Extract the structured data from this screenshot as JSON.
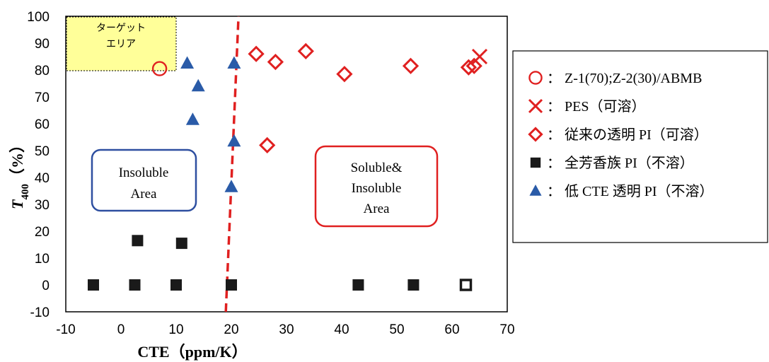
{
  "chart_data": {
    "type": "scatter",
    "xlabel": "CTE（ppm/K）",
    "ylabel_main": "T",
    "ylabel_sub": "400",
    "ylabel_tail": "（%）",
    "xlim": [
      -10,
      70
    ],
    "ylim": [
      -10,
      100
    ],
    "xticks": [
      -10,
      0,
      10,
      20,
      30,
      40,
      50,
      60,
      70
    ],
    "yticks": [
      -10,
      0,
      10,
      20,
      30,
      40,
      50,
      60,
      70,
      80,
      90,
      100
    ],
    "target_area": {
      "label_line1": "ターゲット",
      "label_line2": "エリア",
      "x_range": [
        -10,
        10
      ],
      "y_range": [
        80,
        100
      ],
      "color": "#ffff99"
    },
    "regions": [
      {
        "id": "insoluble",
        "lines": [
          "Insoluble",
          "Area"
        ],
        "color": "#2e4fa0"
      },
      {
        "id": "soluble",
        "lines": [
          "Soluble&",
          "Insoluble",
          "Area"
        ],
        "color": "#e02020"
      }
    ],
    "boundary_line": {
      "x": [
        19,
        21.3
      ],
      "y": [
        -10,
        100
      ],
      "color": "#e02020"
    },
    "series": [
      {
        "name": "Z-1(70);Z-2(30)/ABMB",
        "legend_symbol": "○",
        "marker": "circle",
        "color": "#e02020",
        "points": [
          [
            7,
            80.5
          ]
        ]
      },
      {
        "name": "PES（可溶）",
        "legend_symbol": "×",
        "marker": "x",
        "color": "#e02020",
        "points": [
          [
            65,
            85
          ]
        ]
      },
      {
        "name": "従来の透明 PI（可溶）",
        "legend_symbol": "◇",
        "marker": "diamond",
        "color": "#e02020",
        "points": [
          [
            24.5,
            86
          ],
          [
            28,
            83
          ],
          [
            33.5,
            87
          ],
          [
            40.5,
            78.5
          ],
          [
            52.5,
            81.5
          ],
          [
            63,
            81
          ],
          [
            64,
            81.5
          ],
          [
            26.5,
            52
          ]
        ]
      },
      {
        "name": "全芳香族 PI（不溶）",
        "legend_symbol": "■",
        "marker": "square",
        "color": "#1a1a1a",
        "points": [
          [
            -5,
            0
          ],
          [
            2.5,
            0
          ],
          [
            10,
            0
          ],
          [
            20,
            0
          ],
          [
            43,
            0
          ],
          [
            53,
            0
          ],
          [
            3,
            16.5
          ],
          [
            11,
            15.5
          ]
        ]
      },
      {
        "name": "低 CTE 透明 PI（不溶）",
        "legend_symbol": "▲",
        "marker": "triangle",
        "color": "#2a5ba8",
        "points": [
          [
            12,
            82.5
          ],
          [
            14,
            74
          ],
          [
            13,
            61.5
          ],
          [
            20.5,
            82.5
          ],
          [
            20.5,
            53.5
          ],
          [
            20,
            36.5
          ]
        ]
      }
    ],
    "extra_points": [
      {
        "marker": "square-open",
        "color": "#1a1a1a",
        "points": [
          [
            62.5,
            0
          ]
        ]
      }
    ],
    "legend_separator": "："
  }
}
